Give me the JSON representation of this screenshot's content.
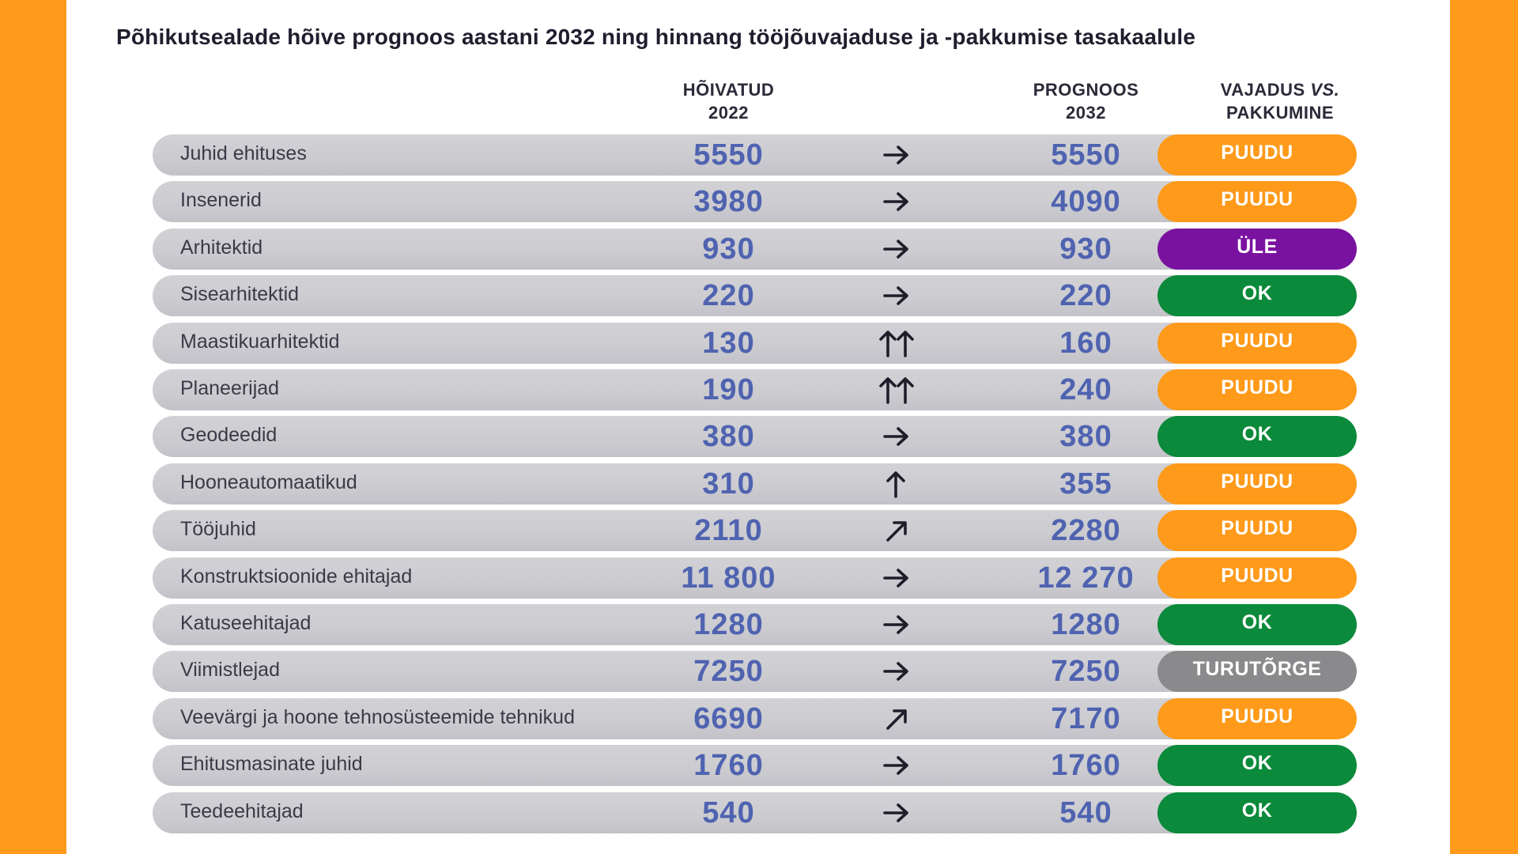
{
  "chart_data": {
    "type": "table",
    "title": "Põhikutsealade hõive prognoos aastani 2032 ning hinnang tööjõuvajaduse ja -pakkumise tasakaalule",
    "columns": {
      "employed": [
        "HÕIVATUD",
        "2022"
      ],
      "forecast": [
        "PROGNOOS",
        "2032"
      ],
      "balance_line1_a": "VAJADUS ",
      "balance_line1_b": "VS.",
      "balance_line2": "PAKKUMINE"
    },
    "status_colors": {
      "PUUDU": "#FF9A1A",
      "ÜLE": "#7A12A0",
      "OK": "#0A8A3A",
      "TURUTÕRGE": "#8A8A8C"
    },
    "arrow_types": {
      "flat": "right arrow",
      "up": "up arrow",
      "double-up": "double up arrow",
      "diag": "up-right arrow"
    },
    "rows": [
      {
        "name": "Juhid ehituses",
        "employed": "5550",
        "forecast": "5550",
        "trend": "flat",
        "status": "PUUDU"
      },
      {
        "name": "Insenerid",
        "employed": "3980",
        "forecast": "4090",
        "trend": "flat",
        "status": "PUUDU"
      },
      {
        "name": "Arhitektid",
        "employed": "930",
        "forecast": "930",
        "trend": "flat",
        "status": "ÜLE"
      },
      {
        "name": "Sisearhitektid",
        "employed": "220",
        "forecast": "220",
        "trend": "flat",
        "status": "OK"
      },
      {
        "name": "Maastikuarhitektid",
        "employed": "130",
        "forecast": "160",
        "trend": "double-up",
        "status": "PUUDU"
      },
      {
        "name": "Planeerijad",
        "employed": "190",
        "forecast": "240",
        "trend": "double-up",
        "status": "PUUDU"
      },
      {
        "name": "Geodeedid",
        "employed": "380",
        "forecast": "380",
        "trend": "flat",
        "status": "OK"
      },
      {
        "name": "Hooneautomaatikud",
        "employed": "310",
        "forecast": "355",
        "trend": "up",
        "status": "PUUDU"
      },
      {
        "name": "Tööjuhid",
        "employed": "2110",
        "forecast": "2280",
        "trend": "diag",
        "status": "PUUDU"
      },
      {
        "name": "Konstruktsioonide ehitajad",
        "employed": "11 800",
        "forecast": "12 270",
        "trend": "flat",
        "status": "PUUDU"
      },
      {
        "name": "Katuseehitajad",
        "employed": "1280",
        "forecast": "1280",
        "trend": "flat",
        "status": "OK"
      },
      {
        "name": "Viimistlejad",
        "employed": "7250",
        "forecast": "7250",
        "trend": "flat",
        "status": "TURUTÕRGE"
      },
      {
        "name": "Veevärgi ja hoone tehnosüsteemide tehnikud",
        "employed": "6690",
        "forecast": "7170",
        "trend": "diag",
        "status": "PUUDU"
      },
      {
        "name": "Ehitusmasinate juhid",
        "employed": "1760",
        "forecast": "1760",
        "trend": "flat",
        "status": "OK"
      },
      {
        "name": "Teedeehitajad",
        "employed": "540",
        "forecast": "540",
        "trend": "flat",
        "status": "OK"
      }
    ]
  }
}
